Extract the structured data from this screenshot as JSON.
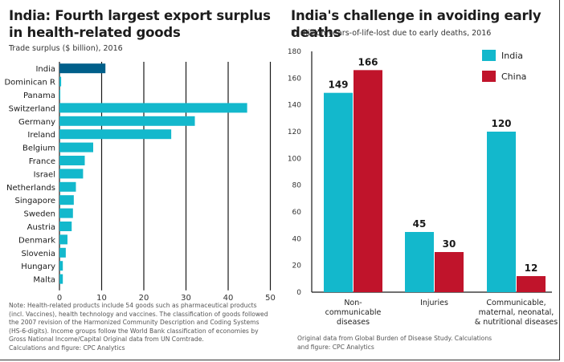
{
  "left_panel": {
    "title_line1": "India: Fourth largest export surplus",
    "title_line2": "in health-related goods",
    "subtitle": "Trade surplus ($ billion), 2016",
    "note_lines": [
      "Note: Health-related products include 54 goods such as pharmaceutical products",
      "(incl. Vaccines), health technology and vaccines. The classification of goods followed",
      "the 2007 revision of the Harmonized Community Description and Coding Systems",
      "(HS-6-digits). Income groups follow the World Bank classification of economies by",
      "Gross National Income/Capital Original data from UN Comtrade.",
      "Calculations and figure: CPC Analytics"
    ]
  },
  "right_panel": {
    "title": "India's challenge in avoiding early deaths",
    "subtitle": "In million years-of-life-lost due to early deaths, 2016",
    "note_lines": [
      "Original data from Global Burden of Disease Study. Calculations",
      "and figure: CPC Analytics"
    ]
  },
  "colors": {
    "india_highlight": "#005f8a",
    "teal": "#13b8cc",
    "china_red": "#c0142b",
    "grid": "#1a1a1a"
  },
  "chart_data": [
    {
      "type": "bar",
      "orientation": "horizontal",
      "title": "India: Fourth largest export surplus in health-related goods",
      "subtitle": "Trade surplus ($ billion), 2016",
      "categories": [
        "India",
        "Dominican R",
        "Panama",
        "Switzerland",
        "Germany",
        "Ireland",
        "Belgium",
        "France",
        "Israel",
        "Netherlands",
        "Singapore",
        "Sweden",
        "Austria",
        "Denmark",
        "Slovenia",
        "Hungary",
        "Malta"
      ],
      "values": [
        10.9,
        0.4,
        0.2,
        44.5,
        32.1,
        26.5,
        8.0,
        6.0,
        5.6,
        3.9,
        3.4,
        3.2,
        2.9,
        1.9,
        1.5,
        0.8,
        0.8
      ],
      "highlight": "India",
      "xlim": [
        0,
        50
      ],
      "xticks": [
        0,
        10,
        20,
        30,
        40,
        50
      ],
      "xlabel": "",
      "ylabel": "",
      "grid": true
    },
    {
      "type": "bar",
      "orientation": "vertical",
      "title": "India's challenge in avoiding early deaths",
      "subtitle": "In million years-of-life-lost due to early deaths, 2016",
      "categories": [
        [
          "Non-",
          "communicable",
          "diseases"
        ],
        [
          "Injuries"
        ],
        [
          "Communicable,",
          "maternal, neonatal,",
          "& nutritional diseases"
        ]
      ],
      "series": [
        {
          "name": "India",
          "values": [
            149,
            45,
            120
          ]
        },
        {
          "name": "China",
          "values": [
            166,
            30,
            12
          ]
        }
      ],
      "ylim": [
        0,
        180
      ],
      "yticks": [
        0,
        20,
        40,
        60,
        80,
        100,
        120,
        140,
        160,
        180
      ],
      "legend": "top-right",
      "grid": false
    }
  ]
}
